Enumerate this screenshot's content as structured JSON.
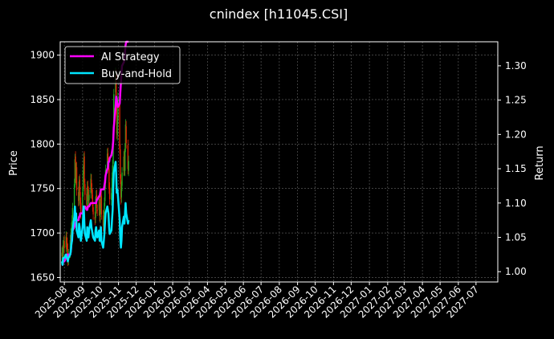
{
  "chart_data": {
    "type": "line",
    "title": "cnindex [h11045.CSI]",
    "xlabel": "",
    "ylabel_left": "Price",
    "ylabel_right": "Return",
    "xlim": [
      "2025-07-25",
      "2027-08-07"
    ],
    "ylim_left": [
      1645,
      1915
    ],
    "ylim_right": [
      0.985,
      1.335
    ],
    "grid": true,
    "legend_position": "top-left",
    "x_ticks": [
      "2025-08",
      "2025-09",
      "2025-10",
      "2025-11",
      "2025-12",
      "2026-01",
      "2026-02",
      "2026-03",
      "2026-04",
      "2026-05",
      "2026-06",
      "2026-07",
      "2026-08",
      "2026-09",
      "2026-10",
      "2026-11",
      "2026-12",
      "2027-01",
      "2027-02",
      "2027-03",
      "2027-04",
      "2027-05",
      "2027-06",
      "2027-07"
    ],
    "y_ticks_left": [
      1650,
      1700,
      1750,
      1800,
      1850,
      1900
    ],
    "y_ticks_right": [
      "1.00",
      "1.05",
      "1.10",
      "1.15",
      "1.20",
      "1.25",
      "1.30"
    ],
    "colors": {
      "background": "#000000",
      "ai_strategy": "#ff00ff",
      "buy_and_hold": "#00e5ff",
      "candle_up": "#22aa22",
      "candle_down": "#dd2200"
    },
    "candles": {
      "start_date": "2025-07-28",
      "close": [
        1678,
        1672,
        1686,
        1690,
        1683,
        1696,
        1688,
        1680,
        1669,
        1676,
        1692,
        1699,
        1706,
        1714,
        1728,
        1755,
        1783,
        1762,
        1773,
        1748,
        1736,
        1758,
        1748,
        1733,
        1722,
        1746,
        1770,
        1784,
        1757,
        1743,
        1732,
        1752,
        1748,
        1736,
        1743,
        1761,
        1752,
        1744,
        1730,
        1721,
        1715,
        1735,
        1742,
        1728,
        1725,
        1737,
        1719,
        1727,
        1741,
        1721,
        1708,
        1719,
        1734,
        1758,
        1771,
        1789,
        1781,
        1774,
        1750,
        1738,
        1745,
        1762,
        1776,
        1812,
        1856,
        1880,
        1846,
        1812,
        1826,
        1852,
        1795,
        1761,
        1738,
        1752,
        1768,
        1786,
        1771,
        1795,
        1822,
        1801,
        1772,
        1781
      ],
      "open": [
        1674,
        1680,
        1673,
        1684,
        1691,
        1684,
        1695,
        1689,
        1682,
        1670,
        1678,
        1693,
        1700,
        1707,
        1716,
        1731,
        1757,
        1786,
        1760,
        1774,
        1746,
        1737,
        1760,
        1746,
        1734,
        1720,
        1747,
        1772,
        1786,
        1755,
        1744,
        1731,
        1753,
        1746,
        1737,
        1745,
        1760,
        1750,
        1743,
        1729,
        1718,
        1717,
        1737,
        1743,
        1726,
        1726,
        1738,
        1718,
        1728,
        1742,
        1720,
        1707,
        1721,
        1736,
        1756,
        1773,
        1790,
        1780,
        1772,
        1751,
        1737,
        1747,
        1761,
        1778,
        1810,
        1858,
        1878,
        1844,
        1810,
        1828,
        1850,
        1794,
        1760,
        1740,
        1753,
        1770,
        1788,
        1770,
        1797,
        1820,
        1799,
        1770
      ]
    },
    "series": [
      {
        "name": "AI Strategy",
        "color": "#ff00ff",
        "start_date": "2025-07-28",
        "values": [
          1.01,
          1.01,
          1.015,
          1.015,
          1.015,
          1.02,
          1.02,
          1.025,
          1.02,
          1.025,
          1.025,
          1.03,
          1.04,
          1.05,
          1.06,
          1.065,
          1.07,
          1.07,
          1.075,
          1.075,
          1.075,
          1.08,
          1.08,
          1.085,
          1.085,
          1.085,
          1.09,
          1.095,
          1.095,
          1.095,
          1.09,
          1.09,
          1.095,
          1.095,
          1.095,
          1.1,
          1.1,
          1.1,
          1.1,
          1.1,
          1.1,
          1.1,
          1.1,
          1.105,
          1.105,
          1.11,
          1.11,
          1.115,
          1.12,
          1.12,
          1.12,
          1.12,
          1.125,
          1.13,
          1.14,
          1.15,
          1.15,
          1.16,
          1.16,
          1.165,
          1.17,
          1.175,
          1.18,
          1.19,
          1.21,
          1.24,
          1.255,
          1.25,
          1.245,
          1.24,
          1.245,
          1.26,
          1.275,
          1.29,
          1.3,
          1.305,
          1.31,
          1.32,
          1.33,
          1.335,
          1.335,
          1.335
        ]
      },
      {
        "name": "Buy-and-Hold",
        "color": "#00e5ff",
        "start_date": "2025-07-28",
        "values": [
          1.015,
          1.01,
          1.02,
          1.02,
          1.02,
          1.025,
          1.02,
          1.02,
          1.015,
          1.02,
          1.025,
          1.03,
          1.04,
          1.045,
          1.06,
          1.08,
          1.095,
          1.075,
          1.085,
          1.06,
          1.05,
          1.07,
          1.065,
          1.055,
          1.045,
          1.065,
          1.08,
          1.095,
          1.07,
          1.055,
          1.045,
          1.065,
          1.06,
          1.05,
          1.06,
          1.075,
          1.065,
          1.06,
          1.055,
          1.05,
          1.045,
          1.06,
          1.065,
          1.055,
          1.05,
          1.06,
          1.045,
          1.05,
          1.065,
          1.045,
          1.035,
          1.045,
          1.055,
          1.07,
          1.085,
          1.095,
          1.09,
          1.085,
          1.065,
          1.055,
          1.06,
          1.075,
          1.09,
          1.12,
          1.145,
          1.16,
          1.14,
          1.115,
          1.12,
          1.11,
          1.075,
          1.05,
          1.035,
          1.045,
          1.065,
          1.08,
          1.07,
          1.085,
          1.1,
          1.085,
          1.07,
          1.075
        ]
      }
    ]
  }
}
